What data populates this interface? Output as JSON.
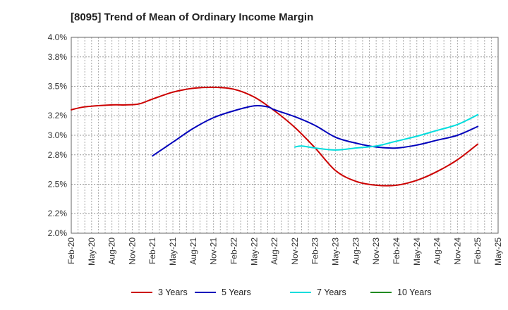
{
  "chart_data": {
    "type": "line",
    "title": "[8095]  Trend of Mean of Ordinary Income Margin",
    "xlabel": "",
    "ylabel": "",
    "ylim": [
      2.0,
      4.0
    ],
    "y_ticks": [
      "2.0%",
      "2.2%",
      "2.5%",
      "2.8%",
      "3.0%",
      "3.2%",
      "3.5%",
      "3.8%",
      "4.0%"
    ],
    "x_ticks": [
      "Feb-20",
      "May-20",
      "Aug-20",
      "Nov-20",
      "Feb-21",
      "May-21",
      "Aug-21",
      "Nov-21",
      "Feb-22",
      "May-22",
      "Aug-22",
      "Nov-22",
      "Feb-23",
      "May-23",
      "Aug-23",
      "Nov-23",
      "Feb-24",
      "May-24",
      "Aug-24",
      "Nov-24",
      "Feb-25",
      "May-25"
    ],
    "grid": true,
    "legend_position": "bottom",
    "series": [
      {
        "name": "3 Years",
        "color": "#cc0000",
        "points": [
          {
            "x": "Feb-20",
            "y": 3.26
          },
          {
            "x": "Apr-20",
            "y": 3.29
          },
          {
            "x": "Aug-20",
            "y": 3.31
          },
          {
            "x": "Oct-20",
            "y": 3.31
          },
          {
            "x": "Dec-20",
            "y": 3.32
          },
          {
            "x": "Feb-21",
            "y": 3.37
          },
          {
            "x": "May-21",
            "y": 3.44
          },
          {
            "x": "Aug-21",
            "y": 3.48
          },
          {
            "x": "Nov-21",
            "y": 3.49
          },
          {
            "x": "Feb-22",
            "y": 3.47
          },
          {
            "x": "May-22",
            "y": 3.39
          },
          {
            "x": "Aug-22",
            "y": 3.25
          },
          {
            "x": "Nov-22",
            "y": 3.08
          },
          {
            "x": "Feb-23",
            "y": 2.87
          },
          {
            "x": "May-23",
            "y": 2.64
          },
          {
            "x": "Aug-23",
            "y": 2.53
          },
          {
            "x": "Nov-23",
            "y": 2.49
          },
          {
            "x": "Feb-24",
            "y": 2.49
          },
          {
            "x": "May-24",
            "y": 2.54
          },
          {
            "x": "Aug-24",
            "y": 2.63
          },
          {
            "x": "Nov-24",
            "y": 2.75
          },
          {
            "x": "Feb-25",
            "y": 2.91
          }
        ]
      },
      {
        "name": "5 Years",
        "color": "#0000bb",
        "points": [
          {
            "x": "Feb-21",
            "y": 2.79
          },
          {
            "x": "May-21",
            "y": 2.93
          },
          {
            "x": "Aug-21",
            "y": 3.07
          },
          {
            "x": "Nov-21",
            "y": 3.18
          },
          {
            "x": "Feb-22",
            "y": 3.25
          },
          {
            "x": "May-22",
            "y": 3.3
          },
          {
            "x": "Jul-22",
            "y": 3.29
          },
          {
            "x": "Aug-22",
            "y": 3.26
          },
          {
            "x": "Nov-22",
            "y": 3.19
          },
          {
            "x": "Feb-23",
            "y": 3.1
          },
          {
            "x": "May-23",
            "y": 2.98
          },
          {
            "x": "Aug-23",
            "y": 2.92
          },
          {
            "x": "Nov-23",
            "y": 2.88
          },
          {
            "x": "Feb-24",
            "y": 2.87
          },
          {
            "x": "May-24",
            "y": 2.9
          },
          {
            "x": "Aug-24",
            "y": 2.95
          },
          {
            "x": "Nov-24",
            "y": 3.0
          },
          {
            "x": "Feb-25",
            "y": 3.09
          }
        ]
      },
      {
        "name": "7 Years",
        "color": "#00dddd",
        "points": [
          {
            "x": "Nov-22",
            "y": 2.88
          },
          {
            "x": "Dec-22",
            "y": 2.89
          },
          {
            "x": "Feb-23",
            "y": 2.87
          },
          {
            "x": "May-23",
            "y": 2.85
          },
          {
            "x": "Aug-23",
            "y": 2.87
          },
          {
            "x": "Nov-23",
            "y": 2.89
          },
          {
            "x": "Feb-24",
            "y": 2.94
          },
          {
            "x": "May-24",
            "y": 2.99
          },
          {
            "x": "Aug-24",
            "y": 3.05
          },
          {
            "x": "Nov-24",
            "y": 3.11
          },
          {
            "x": "Feb-25",
            "y": 3.21
          }
        ]
      },
      {
        "name": "10 Years",
        "color": "#228b22",
        "points": []
      }
    ]
  }
}
